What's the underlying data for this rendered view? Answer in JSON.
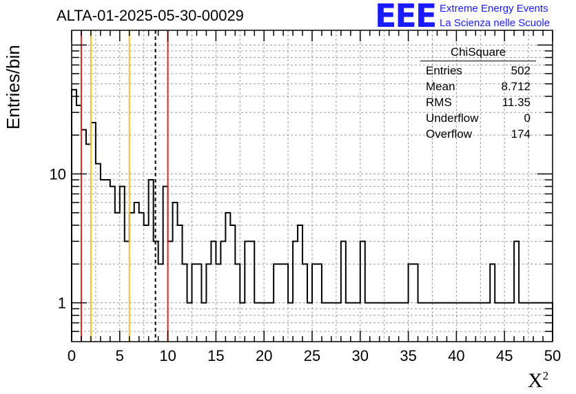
{
  "header": {
    "title": "ALTA-01-2025-05-30-00029"
  },
  "logo": {
    "mark": "EEE",
    "line1": "Extreme Energy Events",
    "line2": "La Scienza nelle Scuole",
    "color": "#1a1aff"
  },
  "stats": {
    "title": "ChiSquare",
    "rows": [
      {
        "label": "Entries",
        "value": "502"
      },
      {
        "label": "Mean",
        "value": "8.712"
      },
      {
        "label": "RMS",
        "value": "11.35"
      },
      {
        "label": "Underflow",
        "value": "0"
      },
      {
        "label": "Overflow",
        "value": "174"
      }
    ]
  },
  "chart_data": {
    "type": "histogram",
    "title": "ALTA-01-2025-05-30-00029",
    "xlabel": "X",
    "xlabel_sup": "2",
    "ylabel": "Entries/bin",
    "xlim": [
      0,
      50
    ],
    "ylim": [
      0.5,
      130
    ],
    "yscale": "log",
    "grid": true,
    "bin_width": 0.5,
    "x_ticks": [
      0,
      5,
      10,
      15,
      20,
      25,
      30,
      35,
      40,
      45,
      50
    ],
    "y_ticks": [
      1,
      10
    ],
    "counts": [
      45,
      34,
      22,
      17,
      25,
      12,
      9,
      9,
      8,
      5,
      8,
      3,
      5,
      6,
      5,
      4,
      9,
      3,
      2,
      8,
      3,
      6,
      4,
      2,
      1,
      2,
      2,
      1,
      2,
      3,
      2,
      3,
      5,
      4,
      2,
      1,
      3,
      3,
      1,
      1,
      1,
      1,
      2,
      2,
      2,
      1,
      3,
      4,
      2,
      1,
      2,
      2,
      1,
      1,
      1,
      1,
      3,
      1,
      1,
      1,
      3,
      1,
      1,
      1,
      1,
      1,
      1,
      1,
      1,
      1,
      2,
      2,
      1,
      1,
      1,
      1,
      1,
      1,
      1,
      1,
      1,
      1,
      1,
      1,
      1,
      1,
      1,
      2,
      1,
      1,
      1,
      1,
      3,
      1,
      1,
      1,
      1,
      1,
      1,
      1
    ],
    "vertical_lines": [
      {
        "x": 1,
        "color": "#e32626",
        "style": "solid"
      },
      {
        "x": 2,
        "color": "#f2c21e",
        "style": "solid"
      },
      {
        "x": 6,
        "color": "#f2c21e",
        "style": "solid"
      },
      {
        "x": 8.712,
        "color": "#000000",
        "style": "dashed"
      },
      {
        "x": 10,
        "color": "#e32626",
        "style": "solid"
      }
    ]
  }
}
